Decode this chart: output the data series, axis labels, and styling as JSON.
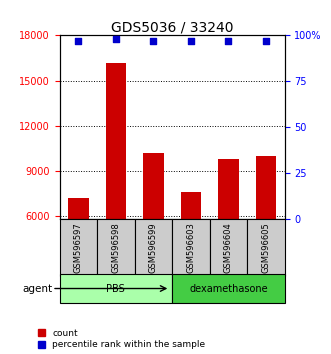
{
  "title": "GDS5036 / 33240",
  "samples": [
    "GSM596597",
    "GSM596598",
    "GSM596599",
    "GSM596603",
    "GSM596604",
    "GSM596605"
  ],
  "counts": [
    7200,
    16200,
    10200,
    7600,
    9800,
    10000
  ],
  "percentiles": [
    97,
    98,
    97,
    97,
    97,
    97
  ],
  "groups": [
    {
      "label": "PBS",
      "indices": [
        0,
        1,
        2
      ],
      "color": "#aaffaa"
    },
    {
      "label": "dexamethasone",
      "indices": [
        3,
        4,
        5
      ],
      "color": "#44cc44"
    }
  ],
  "bar_color": "#cc0000",
  "dot_color": "#0000cc",
  "ylim_left": [
    5800,
    18000
  ],
  "ylim_right": [
    0,
    100
  ],
  "yticks_left": [
    6000,
    9000,
    12000,
    15000,
    18000
  ],
  "yticks_right": [
    0,
    25,
    50,
    75,
    100
  ],
  "ytick_labels_right": [
    "0",
    "25",
    "50",
    "75",
    "100%"
  ],
  "agent_label": "agent",
  "legend_count_label": "count",
  "legend_pct_label": "percentile rank within the sample",
  "bar_width": 0.55,
  "sample_box_color": "#cccccc"
}
